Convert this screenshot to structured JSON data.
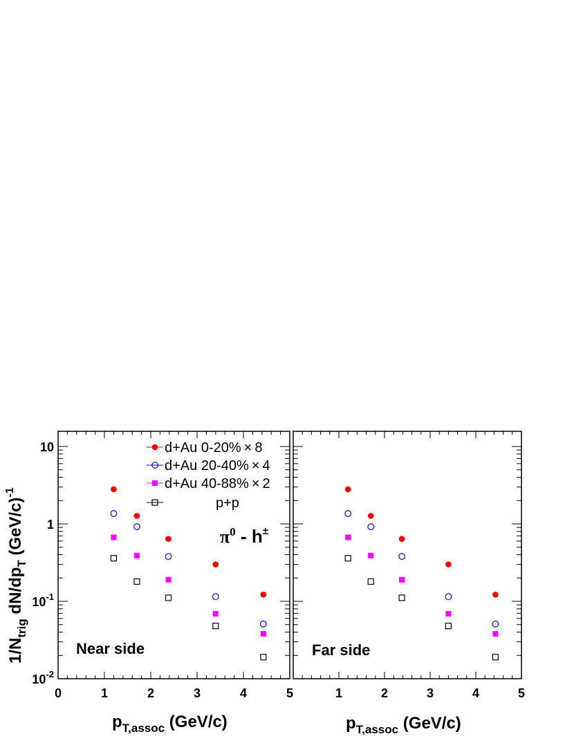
{
  "chart_data": [
    {
      "type": "scatter",
      "panel_label": "Near side",
      "reaction_label": {
        "main": "π",
        "sup1": "0",
        "dash": " - h",
        "sup2": "±"
      },
      "xlabel": {
        "main": "p",
        "sub": "T,assoc",
        "rest": " (GeV/c)"
      },
      "ylabel": {
        "a": "1/N",
        "sub_a": "trig",
        "b": " dN/dp",
        "sub_b": "T",
        "c": " (GeV/c)",
        "sup": "-1"
      },
      "xlim": [
        0,
        5
      ],
      "ylim": [
        0.01,
        15
      ],
      "yscale": "log",
      "x_ticks": [
        "0",
        "1",
        "2",
        "3",
        "4",
        "5"
      ],
      "y_ticks": [
        {
          "value": 10,
          "base": "10",
          "exp": ""
        },
        {
          "value": 1,
          "base": "1",
          "exp": ""
        },
        {
          "value": 0.1,
          "base": "10",
          "exp": "-1"
        },
        {
          "value": 0.01,
          "base": "10",
          "exp": "-2"
        }
      ],
      "legend_placement": "top-right",
      "series": [
        {
          "name": "d+Au 0-20%×8",
          "legend_prefix": "d+Au 0-20%",
          "legend_suffix": "8",
          "color": "#ff0000",
          "marker": "filled-circle",
          "x": [
            1.2,
            1.7,
            2.38,
            3.4,
            4.43
          ],
          "y": [
            2.8,
            1.27,
            0.64,
            0.3,
            0.122
          ]
        },
        {
          "name": "d+Au 20-40%×4",
          "legend_prefix": "d+Au 20-40%",
          "legend_suffix": "4",
          "color": "#0000ff",
          "marker": "open-circle",
          "x": [
            1.2,
            1.7,
            2.38,
            3.4,
            4.43
          ],
          "y": [
            1.36,
            0.92,
            0.38,
            0.115,
            0.051
          ]
        },
        {
          "name": "d+Au 40-88%×2",
          "legend_prefix": "d+Au 40-88%",
          "legend_suffix": "2",
          "color": "#ff00ff",
          "marker": "filled-square",
          "x": [
            1.2,
            1.7,
            2.38,
            3.4,
            4.43
          ],
          "y": [
            0.67,
            0.39,
            0.19,
            0.069,
            0.038
          ]
        },
        {
          "name": "p+p",
          "legend_prefix": "p+p",
          "legend_suffix": "",
          "color": "#000000",
          "marker": "open-square",
          "x": [
            1.2,
            1.7,
            2.38,
            3.4,
            4.43
          ],
          "y": [
            0.36,
            0.18,
            0.111,
            0.048,
            0.019
          ]
        }
      ]
    },
    {
      "type": "scatter",
      "panel_label": "Far side",
      "xlabel": {
        "main": "p",
        "sub": "T,assoc",
        "rest": " (GeV/c)"
      },
      "xlim": [
        0,
        5
      ],
      "ylim": [
        0.01,
        15
      ],
      "yscale": "log",
      "x_ticks": [
        "1",
        "2",
        "3",
        "4",
        "5"
      ],
      "series": [
        {
          "name": "d+Au 0-20%×8",
          "color": "#ff0000",
          "marker": "filled-circle",
          "x": [
            1.2,
            1.7,
            2.38,
            3.4,
            4.43
          ],
          "y": [
            2.8,
            1.27,
            0.64,
            0.3,
            0.122
          ]
        },
        {
          "name": "d+Au 20-40%×4",
          "color": "#0000ff",
          "marker": "open-circle",
          "x": [
            1.2,
            1.7,
            2.38,
            3.4,
            4.43
          ],
          "y": [
            1.36,
            0.92,
            0.38,
            0.115,
            0.051
          ]
        },
        {
          "name": "d+Au 40-88%×2",
          "color": "#ff00ff",
          "marker": "filled-square",
          "x": [
            1.2,
            1.7,
            2.38,
            3.4,
            4.43
          ],
          "y": [
            0.67,
            0.39,
            0.19,
            0.069,
            0.038
          ]
        },
        {
          "name": "p+p",
          "color": "#000000",
          "marker": "open-square",
          "x": [
            1.2,
            1.7,
            2.38,
            3.4,
            4.43
          ],
          "y": [
            0.36,
            0.18,
            0.111,
            0.048,
            0.019
          ]
        }
      ]
    }
  ]
}
